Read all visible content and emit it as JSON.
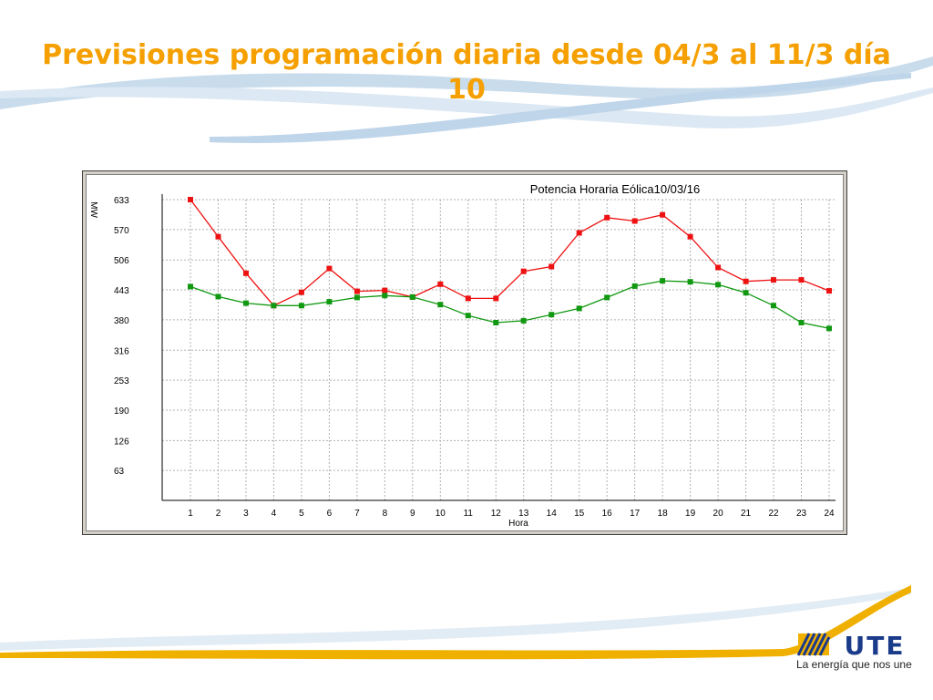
{
  "slide": {
    "title": "Previsiones programación diaria desde 04/3 al 11/3 día 10"
  },
  "brand": {
    "logo_text": "UTE",
    "tagline": "La energía que nos une"
  },
  "colors": {
    "title": "#f5a000",
    "series_red": "#ee1111",
    "series_green": "#119911",
    "accent_orange": "#f0b000",
    "accent_blue": "#9ec4e0"
  },
  "chart_data": {
    "type": "line",
    "title": "Potencia Horaria Eólica10/03/16",
    "xlabel": "Hora",
    "ylabel": "MW",
    "categories": [
      "1",
      "2",
      "3",
      "4",
      "5",
      "6",
      "7",
      "8",
      "9",
      "10",
      "11",
      "12",
      "13",
      "14",
      "15",
      "16",
      "17",
      "18",
      "19",
      "20",
      "21",
      "22",
      "23",
      "24"
    ],
    "y_ticks": [
      63,
      126,
      190,
      253,
      316,
      380,
      443,
      506,
      570,
      633
    ],
    "ylim": [
      0,
      633
    ],
    "grid": true,
    "series": [
      {
        "color": "#ee1111",
        "values": [
          633,
          555,
          478,
          410,
          438,
          488,
          440,
          442,
          428,
          455,
          425,
          425,
          482,
          492,
          563,
          595,
          588,
          601,
          555,
          490,
          461,
          464,
          464,
          441
        ]
      },
      {
        "color": "#119911",
        "values": [
          450,
          429,
          415,
          410,
          410,
          418,
          427,
          431,
          428,
          412,
          389,
          374,
          378,
          391,
          404,
          427,
          451,
          462,
          460,
          454,
          437,
          410,
          374,
          362
        ]
      }
    ]
  }
}
